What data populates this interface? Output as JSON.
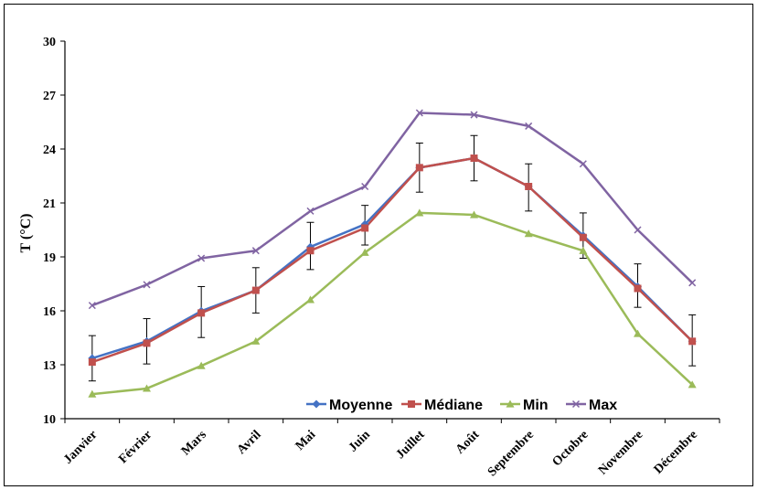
{
  "chart_data": {
    "type": "line",
    "title": "",
    "xlabel": "",
    "ylabel": "T (°C)",
    "categories": [
      "Janvier",
      "Février",
      "Mars",
      "Avril",
      "Mai",
      "Juin",
      "Juillet",
      "Août",
      "Septembre",
      "Octobre",
      "Novembre",
      "Décembre"
    ],
    "y_ticks": [
      "10",
      "13",
      "16",
      "19",
      "21",
      "24",
      "27",
      "30"
    ],
    "ylim": [
      10,
      30
    ],
    "grid": false,
    "legend_position": "bottom-center",
    "series": [
      {
        "name": "Moyenne",
        "color": "#4472C4",
        "marker": "diamond",
        "values": [
          13.2,
          14.1,
          15.7,
          16.8,
          19.1,
          20.3,
          23.3,
          23.8,
          22.3,
          19.7,
          17.0,
          14.1
        ]
      },
      {
        "name": "Médiane",
        "color": "#C0504D",
        "marker": "square",
        "values": [
          13.0,
          14.0,
          15.6,
          16.8,
          18.9,
          20.1,
          23.3,
          23.8,
          22.3,
          19.6,
          16.9,
          14.1
        ]
      },
      {
        "name": "Min",
        "color": "#9BBB59",
        "marker": "triangle",
        "values": [
          11.3,
          11.6,
          12.8,
          14.1,
          16.3,
          18.8,
          20.9,
          20.8,
          19.8,
          18.9,
          14.5,
          11.8
        ]
      },
      {
        "name": "Max",
        "color": "#8064A2",
        "marker": "x",
        "values": [
          16.0,
          17.1,
          18.5,
          18.9,
          21.0,
          22.3,
          26.2,
          26.1,
          25.5,
          23.5,
          20.0,
          17.2
        ]
      }
    ],
    "error_bars": {
      "series": "Moyenne",
      "lower": [
        12.0,
        12.9,
        14.3,
        15.6,
        17.9,
        19.2,
        22.0,
        22.6,
        21.0,
        18.5,
        15.9,
        12.8
      ],
      "upper": [
        14.4,
        15.3,
        17.0,
        18.0,
        20.4,
        21.3,
        24.6,
        25.0,
        23.5,
        20.9,
        18.2,
        15.5
      ]
    }
  }
}
